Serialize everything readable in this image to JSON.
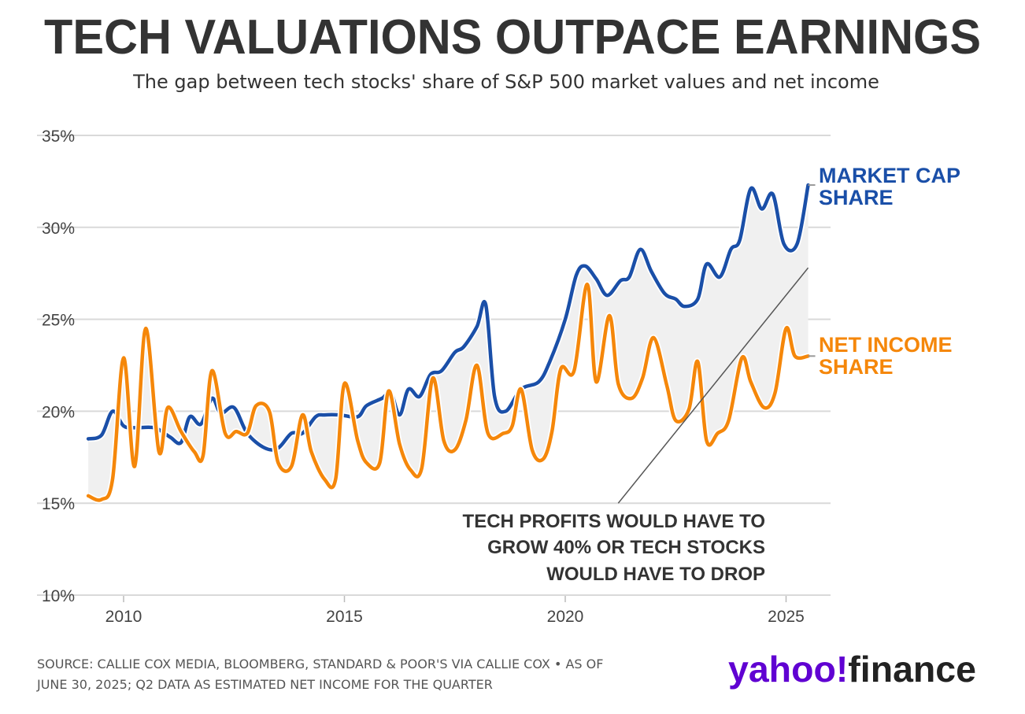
{
  "chart_data": {
    "type": "line",
    "title": "TECH VALUATIONS OUTPACE EARNINGS",
    "subtitle": "The gap between tech stocks' share of S&P 500 market values and net income",
    "ylim": [
      10,
      35
    ],
    "xlim": [
      2009.2,
      2025.9
    ],
    "grid": true,
    "y_ticks": [
      35,
      30,
      25,
      20,
      15,
      10
    ],
    "y_tick_labels": [
      "35%",
      "30%",
      "25%",
      "20%",
      "15%",
      "10%"
    ],
    "x_ticks": [
      2010,
      2015,
      2020,
      2025
    ],
    "x_tick_labels": [
      "2010",
      "2015",
      "2020",
      "2025"
    ],
    "series": [
      {
        "name": "MARKET CAP SHARE",
        "label_lines": [
          "MARKET CAP",
          "SHARE"
        ],
        "color": "#1a4fa8",
        "x": [
          2009.2,
          2009.5,
          2009.75,
          2010.0,
          2010.25,
          2010.7,
          2011.05,
          2011.3,
          2011.5,
          2011.75,
          2012.0,
          2012.2,
          2012.5,
          2012.8,
          2013.2,
          2013.5,
          2013.8,
          2014.05,
          2014.35,
          2014.55,
          2014.9,
          2015.3,
          2015.5,
          2015.85,
          2016.05,
          2016.25,
          2016.45,
          2016.7,
          2016.95,
          2017.2,
          2017.5,
          2017.7,
          2018.0,
          2018.2,
          2018.4,
          2018.65,
          2019.0,
          2019.4,
          2019.65,
          2020.0,
          2020.25,
          2020.45,
          2020.7,
          2020.95,
          2021.25,
          2021.45,
          2021.7,
          2021.95,
          2022.25,
          2022.5,
          2022.7,
          2023.0,
          2023.2,
          2023.5,
          2023.75,
          2023.95,
          2024.2,
          2024.45,
          2024.7,
          2024.95,
          2025.25,
          2025.5
        ],
        "values": [
          18.5,
          18.7,
          20.0,
          19.2,
          19.1,
          19.1,
          18.6,
          18.3,
          19.7,
          19.3,
          20.7,
          19.9,
          20.2,
          18.8,
          18.0,
          18.0,
          18.8,
          18.8,
          19.7,
          19.8,
          19.8,
          19.7,
          20.3,
          20.7,
          21.0,
          19.8,
          21.2,
          20.8,
          22.0,
          22.2,
          23.2,
          23.5,
          24.6,
          25.8,
          20.8,
          20.0,
          21.2,
          21.6,
          22.7,
          25.0,
          27.4,
          27.9,
          27.2,
          26.3,
          27.1,
          27.3,
          28.8,
          27.6,
          26.4,
          26.1,
          25.7,
          26.1,
          28.0,
          27.3,
          28.8,
          29.3,
          32.1,
          31.0,
          31.8,
          29.1,
          29.1,
          32.3
        ]
      },
      {
        "name": "NET INCOME SHARE",
        "label_lines": [
          "NET INCOME",
          "SHARE"
        ],
        "color": "#f5870a",
        "x": [
          2009.2,
          2009.5,
          2009.75,
          2010.0,
          2010.25,
          2010.5,
          2010.8,
          2011.0,
          2011.3,
          2011.6,
          2011.8,
          2012.0,
          2012.3,
          2012.55,
          2012.8,
          2013.0,
          2013.3,
          2013.5,
          2013.8,
          2014.05,
          2014.25,
          2014.55,
          2014.8,
          2015.0,
          2015.3,
          2015.5,
          2015.8,
          2016.0,
          2016.25,
          2016.5,
          2016.75,
          2017.0,
          2017.25,
          2017.5,
          2017.75,
          2018.0,
          2018.25,
          2018.6,
          2018.8,
          2019.0,
          2019.25,
          2019.5,
          2019.7,
          2019.9,
          2020.2,
          2020.5,
          2020.7,
          2021.0,
          2021.2,
          2021.5,
          2021.75,
          2022.0,
          2022.3,
          2022.5,
          2022.8,
          2023.0,
          2023.2,
          2023.45,
          2023.7,
          2024.0,
          2024.2,
          2024.5,
          2024.75,
          2025.0,
          2025.2,
          2025.5
        ],
        "values": [
          15.4,
          15.2,
          16.3,
          22.9,
          17.0,
          24.5,
          17.8,
          20.2,
          18.9,
          17.8,
          17.6,
          22.2,
          18.8,
          18.9,
          18.8,
          20.3,
          20.0,
          17.2,
          17.0,
          19.8,
          17.8,
          16.3,
          16.3,
          21.5,
          18.4,
          17.2,
          17.2,
          21.1,
          18.2,
          16.8,
          16.9,
          21.8,
          18.4,
          17.9,
          19.5,
          22.5,
          18.8,
          18.8,
          19.2,
          21.2,
          17.9,
          17.4,
          18.9,
          22.3,
          22.2,
          26.9,
          21.6,
          25.2,
          21.5,
          20.7,
          21.8,
          24.0,
          21.4,
          19.5,
          20.1,
          22.7,
          18.4,
          18.8,
          19.5,
          22.9,
          21.6,
          20.2,
          21.0,
          24.5,
          23.0,
          23.0
        ]
      }
    ],
    "annotation": {
      "lines": [
        "TECH PROFITS WOULD HAVE TO",
        "GROW 40% OR TECH STOCKS",
        "WOULD HAVE TO DROP"
      ],
      "pointer_from": [
        2021.2,
        15.0
      ],
      "pointer_to": [
        2025.5,
        27.8
      ]
    }
  },
  "footer": {
    "source_line1": "SOURCE: CALLIE COX MEDIA, BLOOMBERG, STANDARD & POOR'S VIA CALLIE COX • AS OF",
    "source_line2": "JUNE 30, 2025; Q2 DATA AS ESTIMATED NET INCOME FOR THE QUARTER",
    "logo_yahoo": "yahoo!",
    "logo_finance": "finance",
    "logo_color": "#6001d2"
  }
}
